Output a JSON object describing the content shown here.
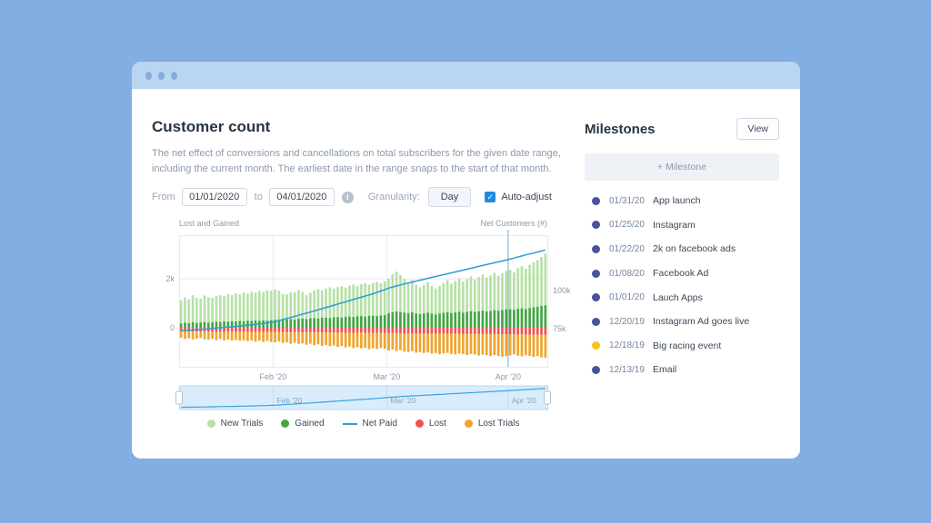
{
  "customer_count": {
    "title": "Customer count",
    "description": "The net effect of conversions and cancellations on total subscribers for the given date range, including the current month. The earliest date in the range snaps to the start of that month.",
    "controls": {
      "from_label": "From",
      "from_value": "01/01/2020",
      "to_label": "to",
      "to_value": "04/01/2020",
      "granularity_label": "Granularity:",
      "granularity_value": "Day",
      "auto_adjust_label": "Auto-adjust",
      "auto_adjust_checked": true
    }
  },
  "chart_data": {
    "type": "bar",
    "title": "Customer count",
    "left_axis_title": "Lost and Gained",
    "right_axis_title": "Net Customers (#)",
    "left_axis": {
      "range": [
        -1590,
        3780
      ],
      "ticks": [
        {
          "value": 2000,
          "label": "2k"
        },
        {
          "value": 0,
          "label": "0"
        }
      ]
    },
    "right_axis": {
      "range": [
        49.4,
        135.7
      ],
      "unit": "k",
      "ticks": [
        {
          "value": 100,
          "label": "100k"
        },
        {
          "value": 75,
          "label": "75k"
        }
      ]
    },
    "months": [
      {
        "label": "Feb '20",
        "index": 24
      },
      {
        "label": "Mar '20",
        "index": 53
      },
      {
        "label": "Apr '20",
        "index": 84,
        "marker": true
      }
    ],
    "granularity": "day",
    "series": [
      {
        "name": "New Trials",
        "color": "#b7e1a7",
        "stack": "above2",
        "values": [
          950,
          1030,
          980,
          1100,
          1020,
          970,
          1080,
          1030,
          990,
          1060,
          1100,
          1040,
          1120,
          1070,
          1150,
          1090,
          1170,
          1110,
          1190,
          1140,
          1220,
          1150,
          1230,
          1190,
          1240,
          1180,
          1060,
          1020,
          1080,
          1120,
          1170,
          1090,
          980,
          1040,
          1130,
          1200,
          1120,
          1180,
          1250,
          1160,
          1220,
          1280,
          1200,
          1260,
          1320,
          1230,
          1300,
          1360,
          1270,
          1340,
          1400,
          1310,
          1380,
          1400,
          1550,
          1620,
          1500,
          1380,
          1250,
          1320,
          1180,
          1100,
          1160,
          1240,
          1120,
          1060,
          1140,
          1220,
          1300,
          1200,
          1280,
          1360,
          1260,
          1340,
          1420,
          1320,
          1400,
          1470,
          1380,
          1450,
          1520,
          1430,
          1500,
          1570,
          1600,
          1520,
          1650,
          1720,
          1640,
          1760,
          1830,
          1900,
          2000,
          2100
        ]
      },
      {
        "name": "Gained",
        "color": "#43a643",
        "stack": "above1",
        "values": [
          180,
          210,
          190,
          230,
          200,
          220,
          240,
          210,
          230,
          250,
          240,
          260,
          250,
          270,
          260,
          280,
          270,
          290,
          280,
          300,
          290,
          310,
          300,
          320,
          330,
          340,
          320,
          350,
          360,
          340,
          370,
          380,
          360,
          390,
          400,
          380,
          410,
          420,
          400,
          430,
          440,
          420,
          450,
          460,
          440,
          470,
          480,
          460,
          490,
          500,
          480,
          510,
          520,
          600,
          640,
          670,
          650,
          620,
          600,
          630,
          580,
          560,
          590,
          620,
          580,
          550,
          580,
          610,
          640,
          600,
          630,
          660,
          620,
          650,
          680,
          650,
          670,
          700,
          670,
          690,
          720,
          700,
          730,
          750,
          760,
          740,
          780,
          800,
          770,
          810,
          840,
          860,
          890,
          920
        ]
      },
      {
        "name": "Net Paid",
        "color": "#2b9fd8",
        "type": "line",
        "axis": "right",
        "values": [
          73.0,
          73.2,
          73.4,
          73.5,
          73.7,
          73.9,
          74.1,
          74.3,
          74.5,
          74.8,
          75.0,
          75.2,
          75.4,
          75.6,
          75.9,
          76.1,
          76.4,
          76.6,
          76.9,
          77.2,
          77.5,
          77.9,
          78.2,
          78.6,
          79.0,
          79.7,
          80.4,
          81.1,
          81.8,
          82.5,
          83.2,
          83.9,
          84.6,
          85.3,
          86.0,
          86.8,
          87.5,
          88.3,
          89.0,
          89.8,
          90.5,
          91.3,
          92.0,
          92.8,
          93.5,
          94.3,
          95.0,
          95.8,
          96.5,
          97.3,
          98.2,
          99.1,
          100.0,
          101.0,
          101.7,
          102.4,
          103.1,
          103.8,
          104.4,
          105.0,
          105.6,
          106.2,
          106.8,
          107.4,
          108.0,
          108.6,
          109.2,
          109.8,
          110.4,
          111.0,
          111.6,
          112.2,
          112.8,
          113.4,
          114.0,
          114.6,
          115.2,
          115.8,
          116.4,
          117.0,
          117.6,
          118.2,
          118.8,
          119.4,
          120.0,
          120.7,
          121.4,
          122.1,
          122.8,
          123.4,
          124.0,
          124.7,
          125.3,
          126.0
        ]
      },
      {
        "name": "Lost",
        "color": "#ef5350",
        "stack": "below1",
        "values": [
          140,
          150,
          145,
          155,
          150,
          145,
          160,
          150,
          155,
          160,
          150,
          165,
          155,
          160,
          165,
          155,
          170,
          160,
          165,
          170,
          160,
          175,
          165,
          170,
          175,
          170,
          180,
          175,
          185,
          180,
          175,
          185,
          190,
          180,
          190,
          185,
          195,
          190,
          185,
          195,
          200,
          190,
          200,
          195,
          205,
          200,
          195,
          205,
          210,
          200,
          210,
          205,
          215,
          220,
          215,
          225,
          220,
          230,
          225,
          220,
          230,
          235,
          225,
          235,
          230,
          240,
          235,
          230,
          240,
          245,
          235,
          245,
          240,
          250,
          245,
          240,
          250,
          255,
          245,
          255,
          250,
          260,
          255,
          265,
          270,
          260,
          275,
          270,
          280,
          275,
          285,
          280,
          290,
          285
        ]
      },
      {
        "name": "Lost Trials",
        "color": "#f0a42e",
        "stack": "below2",
        "values": [
          260,
          300,
          280,
          320,
          290,
          270,
          310,
          330,
          300,
          340,
          310,
          350,
          320,
          360,
          330,
          370,
          340,
          380,
          350,
          390,
          360,
          400,
          370,
          410,
          420,
          390,
          440,
          410,
          460,
          430,
          480,
          450,
          500,
          470,
          520,
          490,
          540,
          510,
          560,
          530,
          580,
          550,
          600,
          570,
          620,
          590,
          640,
          610,
          660,
          630,
          650,
          620,
          640,
          700,
          670,
          720,
          690,
          740,
          760,
          730,
          780,
          750,
          800,
          770,
          820,
          790,
          840,
          810,
          780,
          820,
          850,
          800,
          830,
          860,
          820,
          850,
          880,
          840,
          870,
          900,
          860,
          890,
          920,
          880,
          850,
          820,
          860,
          890,
          840,
          870,
          900,
          870,
          910,
          930
        ]
      }
    ],
    "legend": [
      {
        "label": "New Trials",
        "color": "#b7e1a7",
        "type": "dot"
      },
      {
        "label": "Gained",
        "color": "#43a643",
        "type": "dot"
      },
      {
        "label": "Net Paid",
        "color": "#2b9fd8",
        "type": "line"
      },
      {
        "label": "Lost",
        "color": "#ef5350",
        "type": "dot"
      },
      {
        "label": "Lost Trials",
        "color": "#f0a42e",
        "type": "dot"
      }
    ],
    "marker_color": "#79a7d3",
    "slider": {
      "fill": "#d9ecfb",
      "border": "#b5daf5",
      "line": "#3aa2dd"
    }
  },
  "milestones": {
    "title": "Milestones",
    "view_label": "View",
    "add_icon": "+",
    "add_label": "Milestone",
    "items": [
      {
        "date": "01/31/20",
        "label": "App launch",
        "color": "#4a519e"
      },
      {
        "date": "01/25/20",
        "label": "Instagram",
        "color": "#4a519e"
      },
      {
        "date": "01/22/20",
        "label": "2k on facebook ads",
        "color": "#4a519e"
      },
      {
        "date": "01/08/20",
        "label": "Facebook Ad",
        "color": "#4a519e"
      },
      {
        "date": "01/01/20",
        "label": "Lauch Apps",
        "color": "#4a519e"
      },
      {
        "date": "12/20/19",
        "label": "Instagram Ad goes live",
        "color": "#4a519e"
      },
      {
        "date": "12/18/19",
        "label": "Big racing event",
        "color": "#f5c51d"
      },
      {
        "date": "12/13/19",
        "label": "Email",
        "color": "#4a519e"
      }
    ]
  }
}
